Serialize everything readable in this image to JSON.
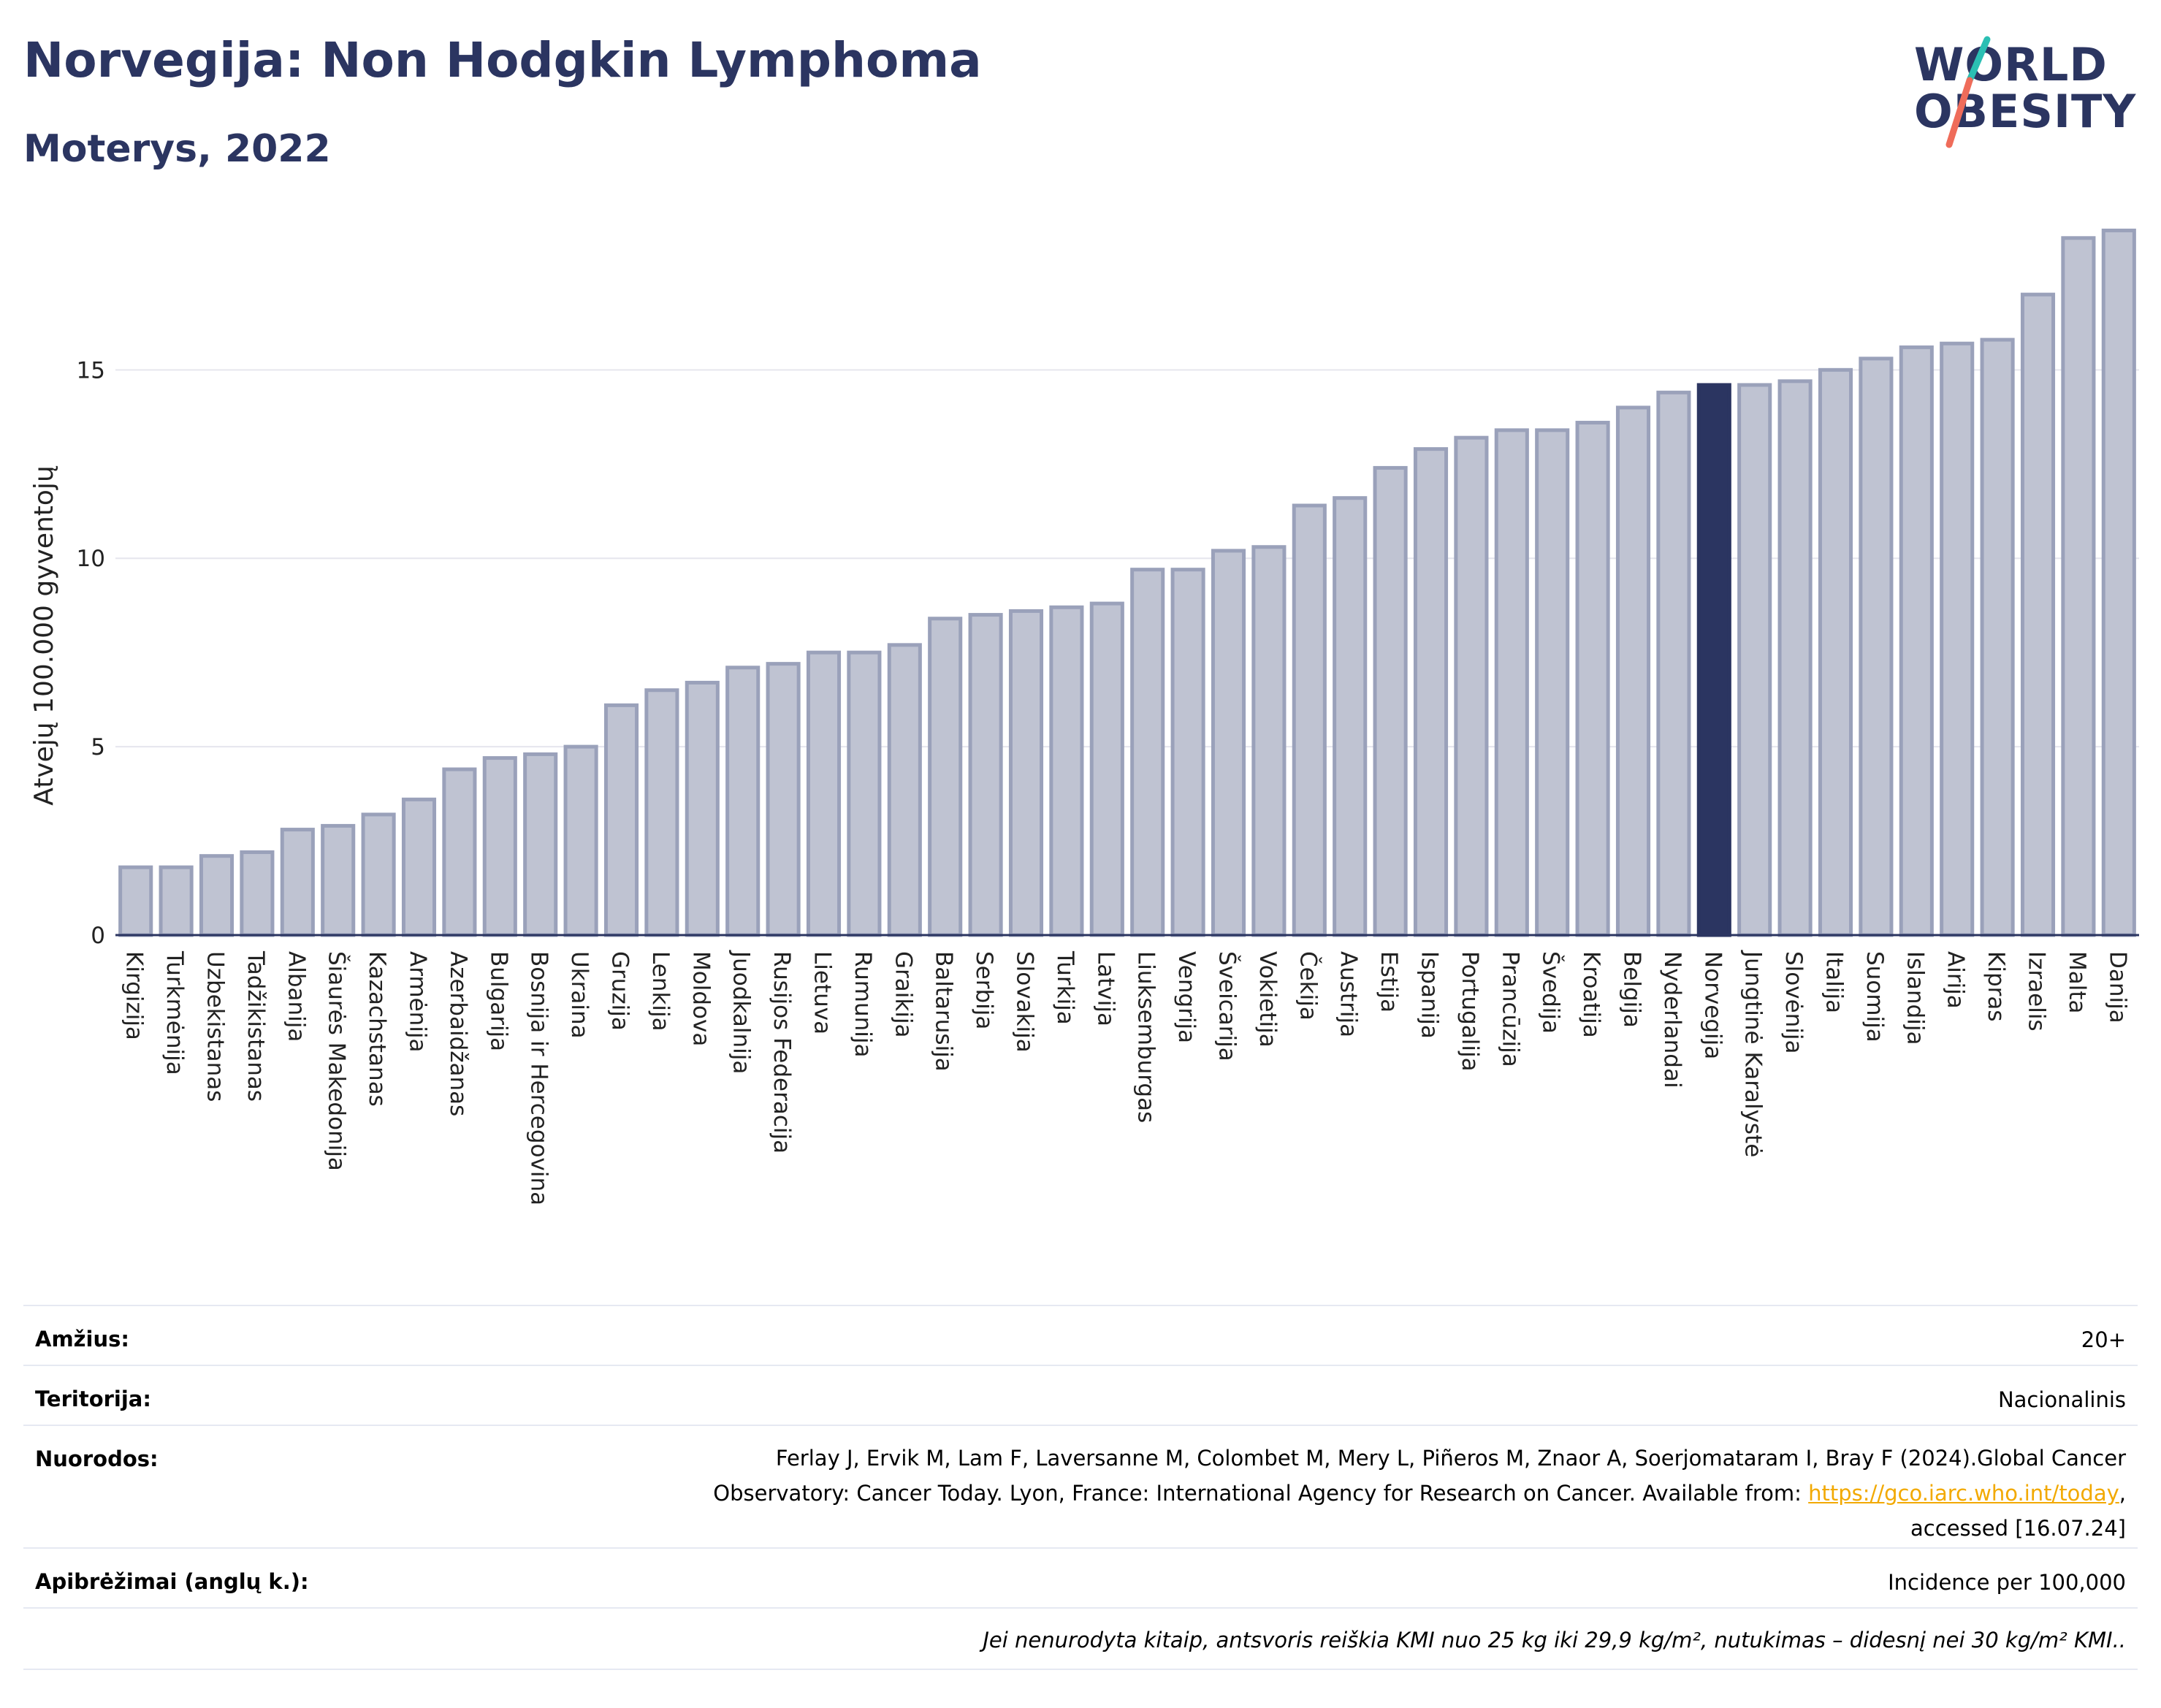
{
  "header": {
    "title": "Norvegija: Non Hodgkin Lymphoma",
    "subtitle": "Moterys, 2022"
  },
  "logo": {
    "line1": "WORLD",
    "line2": "OBESITY"
  },
  "colors": {
    "bar_default": "#bfc3d2",
    "bar_default_border": "#9aa1ba",
    "bar_highlight": "#2b3561",
    "gridline": "#e6e6ee",
    "axis": "#2b3561",
    "logo_teal": "#2bbfb3",
    "logo_coral": "#ef6c5a"
  },
  "chart_data": {
    "type": "bar",
    "ylabel": "Atvejų 100.000 gyventojų",
    "ylim": [
      0,
      19
    ],
    "yticks": [
      0,
      5,
      10,
      15
    ],
    "highlight": "Norvegija",
    "categories": [
      "Kirgizija",
      "Turkmėnija",
      "Uzbekistanas",
      "Tadžikistanas",
      "Albanija",
      "Šiaurės Makedonija",
      "Kazachstanas",
      "Armėnija",
      "Azerbaidžanas",
      "Bulgarija",
      "Bosnija ir Hercegovina",
      "Ukraina",
      "Gruzija",
      "Lenkija",
      "Moldova",
      "Juodkalnija",
      "Rusijos Federacija",
      "Lietuva",
      "Rumunija",
      "Graikija",
      "Baltarusija",
      "Serbija",
      "Slovakija",
      "Turkija",
      "Latvija",
      "Liuksemburgas",
      "Vengrija",
      "Šveicarija",
      "Vokietija",
      "Čekija",
      "Austrija",
      "Estija",
      "Ispanija",
      "Portugalija",
      "Prancūzija",
      "Švedija",
      "Kroatija",
      "Belgija",
      "Nyderlandai",
      "Norvegija",
      "Jungtinė Karalystė",
      "Slovėnija",
      "Italija",
      "Suomija",
      "Islandija",
      "Airija",
      "Kipras",
      "Izraelis",
      "Malta",
      "Danija"
    ],
    "values": [
      1.8,
      1.8,
      2.1,
      2.2,
      2.8,
      2.9,
      3.2,
      3.6,
      4.4,
      4.7,
      4.8,
      5.0,
      6.1,
      6.5,
      6.7,
      7.1,
      7.2,
      7.5,
      7.5,
      7.7,
      8.4,
      8.5,
      8.6,
      8.7,
      8.8,
      9.7,
      9.7,
      10.2,
      10.3,
      11.4,
      11.6,
      12.4,
      12.9,
      13.2,
      13.4,
      13.4,
      13.6,
      14.0,
      14.4,
      14.6,
      14.6,
      14.7,
      15.0,
      15.3,
      15.6,
      15.7,
      15.8,
      17.0,
      18.5,
      18.7
    ]
  },
  "meta": {
    "age_label": "Amžius:",
    "age_value": "20+",
    "territory_label": "Teritorija:",
    "territory_value": "Nacionalinis",
    "refs_label": "Nuorodos:",
    "refs_line1": "Ferlay J, Ervik M, Lam F, Laversanne M, Colombet M, Mery L, Piñeros M, Znaor A, Soerjomataram I, Bray F (2024).Global Cancer",
    "refs_line2_pre": "Observatory: Cancer Today. Lyon, France: International Agency for Research on Cancer. Available from: ",
    "refs_link": "https://gco.iarc.who.int/today",
    "refs_line2_post": ",",
    "refs_line3": "accessed [16.07.24]",
    "defs_label": "Apibrėžimai (anglų k.):",
    "defs_value": "Incidence per 100,000",
    "note": "Jei nenurodyta kitaip, antsvoris reiškia KMI nuo 25 kg iki 29,9 kg/m², nutukimas – didesnį nei 30 kg/m² KMI.."
  }
}
